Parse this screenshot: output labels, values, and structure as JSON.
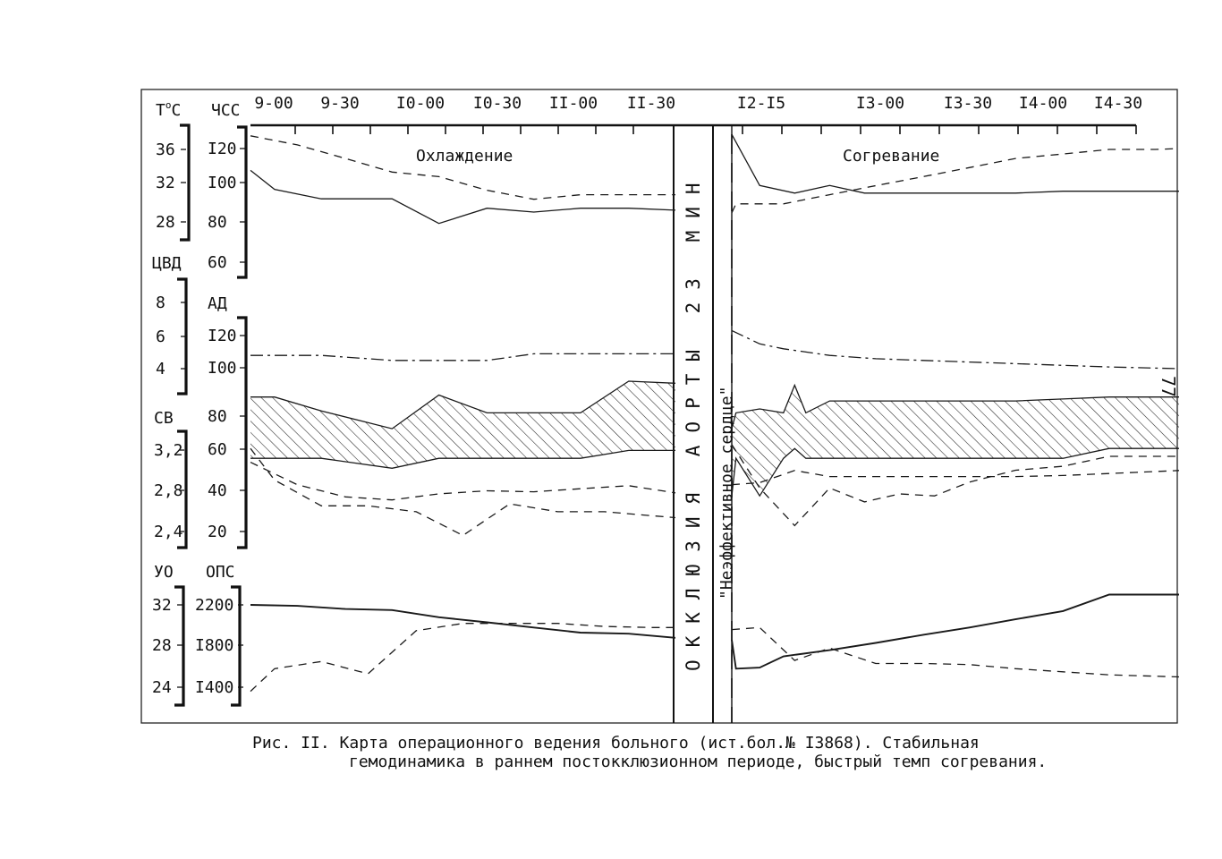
{
  "page_number": "77",
  "caption": {
    "line1": "Рис. II. Карта операционного ведения больного (ист.бол.№ I3868). Стабильная",
    "line2": "гемодинамика в раннем постокклюзионном периоде, быстрый темп согревания."
  },
  "chart_data": {
    "type": "line",
    "x_ticks": [
      "9-00",
      "9-30",
      "I0-00",
      "I0-30",
      "II-00",
      "II-30",
      "I2-I5",
      "I3-00",
      "I3-30",
      "I4-00",
      "I4-30"
    ],
    "phase_labels": {
      "cooling": "Охлаждение",
      "warming": "Согревание"
    },
    "occlusion_label": "ОККЛЮЗИЯ АОРТЫ 23 МИН",
    "ineffective_heart_label": "\"Неэффективное сердце\"",
    "axes": {
      "temp": {
        "label": "ТоС",
        "ticks": [
          "36",
          "32",
          "28"
        ],
        "range": [
          26,
          38
        ]
      },
      "hr": {
        "label": "ЧСС",
        "ticks": [
          "I20",
          "I00",
          "80",
          "60"
        ],
        "range": [
          60,
          130
        ]
      },
      "cvp": {
        "label": "ЦВД",
        "ticks": [
          "8",
          "6",
          "4"
        ],
        "range": [
          3,
          9
        ]
      },
      "bp": {
        "label": "АД",
        "ticks": [
          "I20",
          "I00",
          "80",
          "60",
          "40",
          "20"
        ],
        "range": [
          20,
          120
        ]
      },
      "ci": {
        "label": "СВ",
        "ticks": [
          "3,2",
          "2,8",
          "2,4"
        ],
        "range": [
          2.4,
          3.2
        ]
      },
      "sv": {
        "label": "УО",
        "ticks": [
          "32",
          "28",
          "24"
        ],
        "range": [
          24,
          32
        ]
      },
      "svr": {
        "label": "ОПС",
        "ticks": [
          "2200",
          "I800",
          "I400"
        ],
        "range": [
          1400,
          2200
        ]
      }
    },
    "series": [
      {
        "key": "temp",
        "axis": "temp",
        "style": "dashed",
        "points": [
          [
            9.0,
            37.5
          ],
          [
            9.33,
            36.5
          ],
          [
            9.67,
            35.0
          ],
          [
            10.0,
            33.5
          ],
          [
            10.33,
            33.0
          ],
          [
            10.67,
            31.5
          ],
          [
            11.0,
            30.5
          ],
          [
            11.33,
            31.0
          ],
          [
            11.67,
            31.0
          ],
          [
            12.0,
            31.0
          ],
          [
            12.3,
            29.0
          ],
          [
            12.33,
            30.0
          ],
          [
            12.67,
            30.0
          ],
          [
            13.0,
            31.0
          ],
          [
            13.33,
            32.0
          ],
          [
            13.67,
            33.0
          ],
          [
            14.0,
            34.0
          ],
          [
            14.33,
            35.0
          ],
          [
            14.67,
            35.5
          ],
          [
            15.0,
            36.0
          ],
          [
            15.33,
            36.0
          ],
          [
            15.5,
            36.1
          ]
        ]
      },
      {
        "key": "hr",
        "axis": "hr",
        "style": "solid",
        "points": [
          [
            9.0,
            108
          ],
          [
            9.17,
            98
          ],
          [
            9.5,
            93
          ],
          [
            10.0,
            93
          ],
          [
            10.33,
            80
          ],
          [
            10.67,
            88
          ],
          [
            11.0,
            86
          ],
          [
            11.33,
            88
          ],
          [
            11.67,
            88
          ],
          [
            12.0,
            87
          ],
          [
            12.3,
            127
          ],
          [
            12.5,
            100
          ],
          [
            12.75,
            96
          ],
          [
            13.0,
            100
          ],
          [
            13.25,
            96
          ],
          [
            13.67,
            96
          ],
          [
            14.0,
            96
          ],
          [
            14.33,
            96
          ],
          [
            14.67,
            97
          ],
          [
            15.0,
            97
          ],
          [
            15.5,
            97
          ]
        ]
      },
      {
        "key": "cvp",
        "axis": "cvp",
        "style": "dashdot",
        "points": [
          [
            9.0,
            4.8
          ],
          [
            9.5,
            4.8
          ],
          [
            10.0,
            4.5
          ],
          [
            10.33,
            4.5
          ],
          [
            10.67,
            4.5
          ],
          [
            11.0,
            4.9
          ],
          [
            11.33,
            4.9
          ],
          [
            11.67,
            4.9
          ],
          [
            12.0,
            4.9
          ],
          [
            12.3,
            6.3
          ],
          [
            12.5,
            5.5
          ],
          [
            12.67,
            5.2
          ],
          [
            13.0,
            4.8
          ],
          [
            13.33,
            4.6
          ],
          [
            13.67,
            4.5
          ],
          [
            14.0,
            4.4
          ],
          [
            14.33,
            4.3
          ],
          [
            14.67,
            4.2
          ],
          [
            15.0,
            4.1
          ],
          [
            15.5,
            4.0
          ]
        ]
      },
      {
        "key": "bp_sys",
        "axis": "bp",
        "style": "solid",
        "points": [
          [
            9.0,
            88
          ],
          [
            9.17,
            88
          ],
          [
            9.5,
            81
          ],
          [
            10.0,
            72
          ],
          [
            10.33,
            89
          ],
          [
            10.67,
            80
          ],
          [
            11.0,
            80
          ],
          [
            11.33,
            80
          ],
          [
            11.67,
            96
          ],
          [
            12.0,
            95
          ],
          [
            12.33,
            80
          ],
          [
            12.67,
            80
          ],
          [
            12.83,
            80
          ],
          [
            12.3,
            72
          ],
          [
            12.5,
            82
          ],
          [
            12.75,
            94
          ],
          [
            13.0,
            86
          ],
          [
            13.33,
            86
          ],
          [
            13.67,
            86
          ],
          [
            14.0,
            86
          ],
          [
            14.33,
            86
          ],
          [
            14.67,
            87
          ],
          [
            15.0,
            88
          ],
          [
            15.5,
            88
          ]
        ]
      },
      {
        "key": "bp_dia",
        "axis": "bp",
        "style": "solid",
        "points": [
          [
            9.0,
            57
          ],
          [
            9.5,
            57
          ],
          [
            10.0,
            52
          ],
          [
            10.33,
            57
          ],
          [
            10.67,
            57
          ],
          [
            11.0,
            57
          ],
          [
            11.33,
            57
          ],
          [
            11.67,
            61
          ],
          [
            12.0,
            61
          ],
          [
            12.33,
            57
          ],
          [
            12.67,
            57
          ],
          [
            12.83,
            57
          ],
          [
            12.3,
            38
          ],
          [
            12.5,
            38
          ],
          [
            12.75,
            62
          ],
          [
            13.0,
            57
          ],
          [
            13.33,
            57
          ],
          [
            13.67,
            57
          ],
          [
            14.0,
            57
          ],
          [
            14.33,
            57
          ],
          [
            14.67,
            57
          ],
          [
            15.0,
            62
          ],
          [
            15.5,
            62
          ]
        ]
      },
      {
        "key": "ci",
        "axis": "ci",
        "style": "dashed",
        "points": [
          [
            9.0,
            3.08
          ],
          [
            9.33,
            2.86
          ],
          [
            9.67,
            2.74
          ],
          [
            10.0,
            2.71
          ],
          [
            10.33,
            2.77
          ],
          [
            10.67,
            2.8
          ],
          [
            11.0,
            2.79
          ],
          [
            11.33,
            2.82
          ],
          [
            11.67,
            2.85
          ],
          [
            12.0,
            2.78
          ],
          [
            12.3,
            2.86
          ],
          [
            12.5,
            2.88
          ],
          [
            12.75,
            3.0
          ],
          [
            13.0,
            2.94
          ],
          [
            13.33,
            2.94
          ],
          [
            13.67,
            2.94
          ],
          [
            14.0,
            2.94
          ],
          [
            14.33,
            2.94
          ],
          [
            14.67,
            2.95
          ],
          [
            15.0,
            2.97
          ],
          [
            15.5,
            3.0
          ]
        ]
      },
      {
        "key": "svr",
        "axis": "bp",
        "style": "dashed",
        "points": [
          [
            9.0,
            62
          ],
          [
            9.17,
            46
          ],
          [
            9.5,
            33
          ],
          [
            9.83,
            33
          ],
          [
            10.17,
            30
          ],
          [
            10.5,
            18
          ],
          [
            10.83,
            34
          ],
          [
            11.17,
            30
          ],
          [
            11.5,
            30
          ],
          [
            11.83,
            28
          ],
          [
            12.0,
            27
          ],
          [
            12.3,
            64
          ],
          [
            12.5,
            42
          ],
          [
            12.75,
            23
          ],
          [
            13.0,
            42
          ],
          [
            13.25,
            35
          ],
          [
            13.5,
            39
          ],
          [
            13.75,
            38
          ],
          [
            14.0,
            45
          ],
          [
            14.33,
            51
          ],
          [
            14.67,
            53
          ],
          [
            15.0,
            58
          ],
          [
            15.5,
            58
          ]
        ]
      },
      {
        "key": "sv",
        "axis": "sv",
        "style": "dashed",
        "points": [
          [
            9.0,
            23.6
          ],
          [
            9.17,
            25.8
          ],
          [
            9.5,
            26.5
          ],
          [
            9.83,
            25.3
          ],
          [
            10.17,
            29.5
          ],
          [
            10.5,
            30.2
          ],
          [
            10.83,
            30.2
          ],
          [
            11.17,
            30.2
          ],
          [
            11.5,
            29.9
          ],
          [
            11.83,
            29.8
          ],
          [
            12.0,
            29.8
          ],
          [
            12.3,
            29.6
          ],
          [
            12.5,
            29.8
          ],
          [
            12.75,
            26.6
          ],
          [
            13.0,
            27.8
          ],
          [
            13.33,
            26.3
          ],
          [
            13.67,
            26.3
          ],
          [
            14.0,
            26.2
          ],
          [
            14.33,
            25.8
          ],
          [
            14.67,
            25.5
          ],
          [
            15.0,
            25.2
          ],
          [
            15.5,
            25.0
          ]
        ]
      },
      {
        "key": "svr_dyn",
        "axis": "svr",
        "style": "solid",
        "points": [
          [
            9.0,
            2200
          ],
          [
            9.33,
            2190
          ],
          [
            9.67,
            2160
          ],
          [
            10.0,
            2150
          ],
          [
            10.33,
            2080
          ],
          [
            10.67,
            2030
          ],
          [
            11.0,
            1980
          ],
          [
            11.33,
            1930
          ],
          [
            11.67,
            1920
          ],
          [
            12.0,
            1880
          ],
          [
            12.3,
            1860
          ],
          [
            12.33,
            1580
          ],
          [
            12.5,
            1590
          ],
          [
            12.67,
            1700
          ],
          [
            13.0,
            1760
          ],
          [
            13.33,
            1830
          ],
          [
            13.67,
            1910
          ],
          [
            14.0,
            1980
          ],
          [
            14.33,
            2060
          ],
          [
            14.67,
            2140
          ],
          [
            15.0,
            2300
          ],
          [
            15.5,
            2300
          ]
        ]
      }
    ]
  }
}
